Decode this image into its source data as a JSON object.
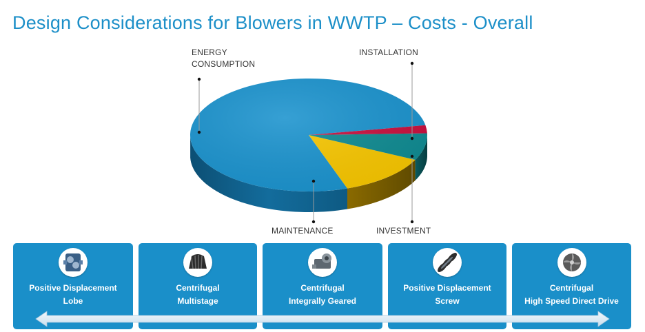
{
  "title": "Design Considerations for Blowers in WWTP – Costs - Overall",
  "chart_data": {
    "type": "pie",
    "style": "3d",
    "slices": [
      {
        "label_lines": [
          "ENERGY",
          "CONSUMPTION"
        ],
        "value": 77.5,
        "color": "#1b93ce"
      },
      {
        "label_lines": [
          "MAINTENANCE"
        ],
        "value": 12.5,
        "color": "#f7c600"
      },
      {
        "label_lines": [
          "INVESTMENT"
        ],
        "value": 7.7,
        "color": "#0f8b92"
      },
      {
        "label_lines": [
          "INSTALLATION"
        ],
        "value": 2.3,
        "color": "#c8103e"
      }
    ]
  },
  "blower_types": [
    {
      "line1": "Positive Displacement",
      "line2": "Lobe",
      "icon": "lobe-blower-icon"
    },
    {
      "line1": "Centrifugal",
      "line2": "Multistage",
      "icon": "multistage-blower-icon"
    },
    {
      "line1": "Centrifugal",
      "line2": "Integrally Geared",
      "icon": "geared-blower-icon"
    },
    {
      "line1": "Positive Displacement",
      "line2": "Screw",
      "icon": "screw-blower-icon"
    },
    {
      "line1": "Centrifugal",
      "line2": "High Speed Direct Drive",
      "icon": "turbo-blower-icon"
    }
  ],
  "colors": {
    "accent": "#1c8fc8",
    "card": "#1a8fc9",
    "arrow": "#dcebf4"
  }
}
